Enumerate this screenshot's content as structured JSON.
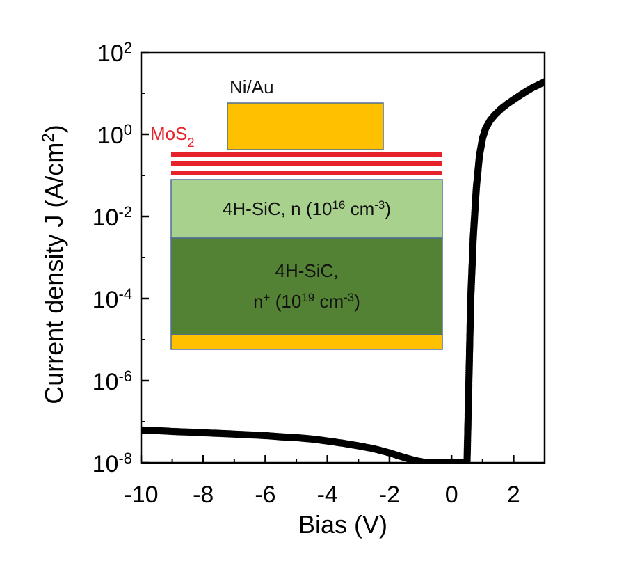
{
  "chart_data": {
    "type": "scatter",
    "xlabel": "Bias (V)",
    "ylabel_main": "Current density J (A/cm",
    "ylabel_sup": "2",
    "ylabel_close": ")",
    "xlim": [
      -10,
      3
    ],
    "ylim_log10": [
      -8,
      2
    ],
    "y_scale": "log",
    "grid": false,
    "x_ticks": [
      {
        "value": -10,
        "label": "-10"
      },
      {
        "value": -8,
        "label": "-8"
      },
      {
        "value": -6,
        "label": "-6"
      },
      {
        "value": -4,
        "label": "-4"
      },
      {
        "value": -2,
        "label": "-2"
      },
      {
        "value": 0,
        "label": "0"
      },
      {
        "value": 2,
        "label": "2"
      }
    ],
    "y_ticks": [
      {
        "exp": 2,
        "base": "10",
        "sup": "2"
      },
      {
        "exp": 0,
        "base": "10",
        "sup": "0"
      },
      {
        "exp": -2,
        "base": "10",
        "sup": "-2"
      },
      {
        "exp": -4,
        "base": "10",
        "sup": "-4"
      },
      {
        "exp": -6,
        "base": "10",
        "sup": "-6"
      },
      {
        "exp": -8,
        "base": "10",
        "sup": "-8"
      }
    ],
    "series": [
      {
        "color": "#000000",
        "points": [
          [
            -10.0,
            6.3e-08
          ],
          [
            -9.5,
            6.1e-08
          ],
          [
            -9.0,
            5.8e-08
          ],
          [
            -8.5,
            5.6e-08
          ],
          [
            -8.0,
            5.4e-08
          ],
          [
            -7.5,
            5.2e-08
          ],
          [
            -7.0,
            5e-08
          ],
          [
            -6.5,
            4.8e-08
          ],
          [
            -6.0,
            4.6e-08
          ],
          [
            -5.5,
            4.3e-08
          ],
          [
            -5.0,
            4.1e-08
          ],
          [
            -4.5,
            3.8e-08
          ],
          [
            -4.0,
            3.4e-08
          ],
          [
            -3.5,
            3e-08
          ],
          [
            -3.0,
            2.6e-08
          ],
          [
            -2.5,
            2.2e-08
          ],
          [
            -2.0,
            1.75e-08
          ],
          [
            -1.6,
            1.4e-08
          ],
          [
            -1.2,
            1.15e-08
          ],
          [
            -0.8,
            1e-08
          ],
          [
            0.5,
            1e-08
          ],
          [
            0.56,
            1e-06
          ],
          [
            0.62,
            0.0001
          ],
          [
            0.7,
            0.003
          ],
          [
            0.8,
            0.05
          ],
          [
            0.9,
            0.3
          ],
          [
            1.0,
            0.8
          ],
          [
            1.1,
            1.4
          ],
          [
            1.25,
            2.2
          ],
          [
            1.4,
            3.0
          ],
          [
            1.6,
            4.2
          ],
          [
            1.8,
            5.5
          ],
          [
            2.0,
            7.0
          ],
          [
            2.2,
            8.8
          ],
          [
            2.4,
            11.0
          ],
          [
            2.6,
            13.5
          ],
          [
            2.8,
            16.0
          ],
          [
            3.0,
            19.0
          ]
        ]
      }
    ],
    "inset": {
      "contact_label": "Ni/Au",
      "mos2_base": "MoS",
      "mos2_sub": "2",
      "layer1_prefix": "4H-SiC, n (10",
      "layer1_sup1": "16",
      "layer1_mid": " cm",
      "layer1_sup2": "-3",
      "layer1_suffix": ")",
      "layer2_line1": "4H-SiC,",
      "layer2_n": "n",
      "layer2_plus": "+",
      "layer2_open": " (10",
      "layer2_sup1": "19",
      "layer2_mid": " cm",
      "layer2_sup2": "-3",
      "layer2_suffix": ")",
      "colors": {
        "contact": "#ffc000",
        "mos2": "#e8222a",
        "n_layer": "#a9d18e",
        "nplus_layer": "#548235",
        "border": "#4f6f93"
      }
    }
  }
}
